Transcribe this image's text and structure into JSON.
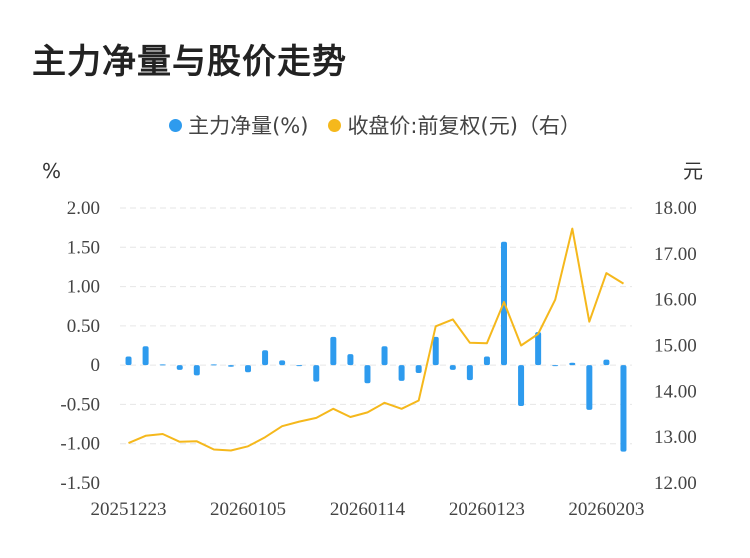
{
  "title": "主力净量与股价走势",
  "legend": {
    "net_label": "主力净量(%)",
    "price_label": "收盘价:前复权(元)（右）"
  },
  "colors": {
    "bar": "#2E9BEE",
    "line": "#F5B81C",
    "grid": "#E6E6E6"
  },
  "chart_data": {
    "type": "bar+line",
    "left_unit": "%",
    "right_unit": "元",
    "left_ticks": [
      "2.00",
      "1.50",
      "1.00",
      "0.50",
      "0",
      "-0.50",
      "-1.00",
      "-1.50"
    ],
    "right_ticks": [
      "18.00",
      "17.00",
      "16.00",
      "15.00",
      "14.00",
      "13.00",
      "12.00"
    ],
    "left_ylim": [
      -1.5,
      2.0
    ],
    "right_ylim": [
      12.0,
      18.0
    ],
    "x_tick_labels": [
      "20251223",
      "20260105",
      "20260114",
      "20260123",
      "20260203"
    ],
    "x_tick_index": [
      0,
      7,
      14,
      21,
      28
    ],
    "net_values": [
      0.11,
      0.24,
      0.01,
      -0.06,
      -0.13,
      0.01,
      -0.02,
      -0.09,
      0.19,
      0.06,
      0.0,
      -0.21,
      0.36,
      0.14,
      -0.23,
      0.24,
      -0.2,
      -0.1,
      0.36,
      -0.06,
      -0.19,
      0.11,
      1.57,
      -0.52,
      0.42,
      -0.01,
      0.03,
      -0.57,
      0.07,
      -1.1
    ],
    "price_values": [
      12.87,
      13.03,
      13.07,
      12.9,
      12.91,
      12.73,
      12.71,
      12.8,
      13.0,
      13.24,
      13.34,
      13.42,
      13.62,
      13.44,
      13.54,
      13.75,
      13.62,
      13.8,
      15.42,
      15.57,
      15.06,
      15.05,
      15.95,
      15.0,
      15.25,
      16.0,
      17.55,
      15.52,
      16.58,
      16.35
    ]
  }
}
